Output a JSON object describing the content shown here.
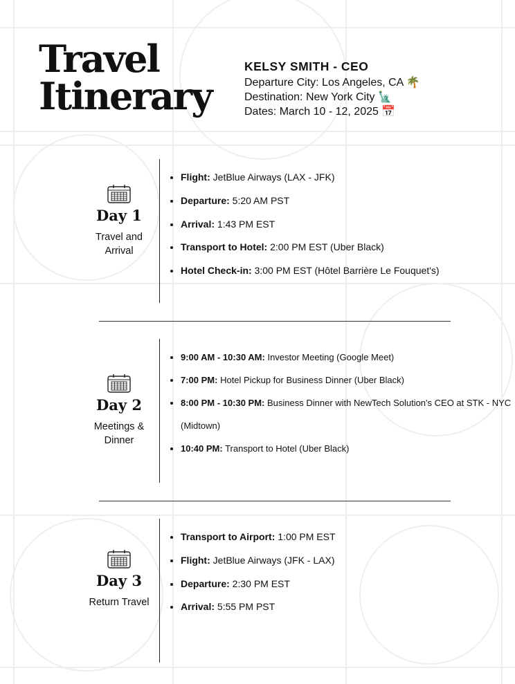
{
  "title": {
    "line1": "Travel",
    "line2": "Itinerary"
  },
  "header": {
    "name": "KELSY SMITH - CEO",
    "departure": "Departure City: Los Angeles, CA 🌴",
    "destination": "Destination: New York City 🗽",
    "dates": "Dates: March 10 - 12, 2025 📅"
  },
  "days": [
    {
      "title": "Day 1",
      "subtitle": "Travel and Arrival",
      "icon": "calendar-icon",
      "items": [
        {
          "label": "Flight:",
          "value": " JetBlue Airways (LAX - JFK)"
        },
        {
          "label": "Departure:",
          "value": " 5:20 AM PST"
        },
        {
          "label": "Arrival:",
          "value": " 1:43 PM EST"
        },
        {
          "label": "Transport to Hotel:",
          "value": " 2:00 PM EST  (Uber Black)"
        },
        {
          "label": "Hotel Check-in:",
          "value": " 3:00 PM EST (Hôtel Barrière Le Fouquet's)"
        }
      ]
    },
    {
      "title": "Day 2",
      "subtitle": "Meetings & Dinner",
      "icon": "calendar-icon",
      "items": [
        {
          "label": "9:00 AM - 10:30 AM:",
          "value": " Investor Meeting (Google Meet)"
        },
        {
          "label": "7:00 PM:",
          "value": " Hotel Pickup for Business Dinner (Uber Black)"
        },
        {
          "label": "8:00 PM - 10:30 PM:",
          "value": " Business Dinner with NewTech Solution's CEO at STK - NYC (Midtown)"
        },
        {
          "label": "10:40 PM:",
          "value": " Transport to Hotel (Uber Black)"
        }
      ]
    },
    {
      "title": "Day 3",
      "subtitle": "Return Travel",
      "icon": "calendar-icon",
      "items": [
        {
          "label": "Transport to Airport:",
          "value": " 1:00 PM EST"
        },
        {
          "label": "Flight:",
          "value": " JetBlue Airways (JFK - LAX)"
        },
        {
          "label": "Departure:",
          "value": " 2:30 PM EST"
        },
        {
          "label": "Arrival:",
          "value": " 5:55 PM PST"
        }
      ]
    }
  ]
}
